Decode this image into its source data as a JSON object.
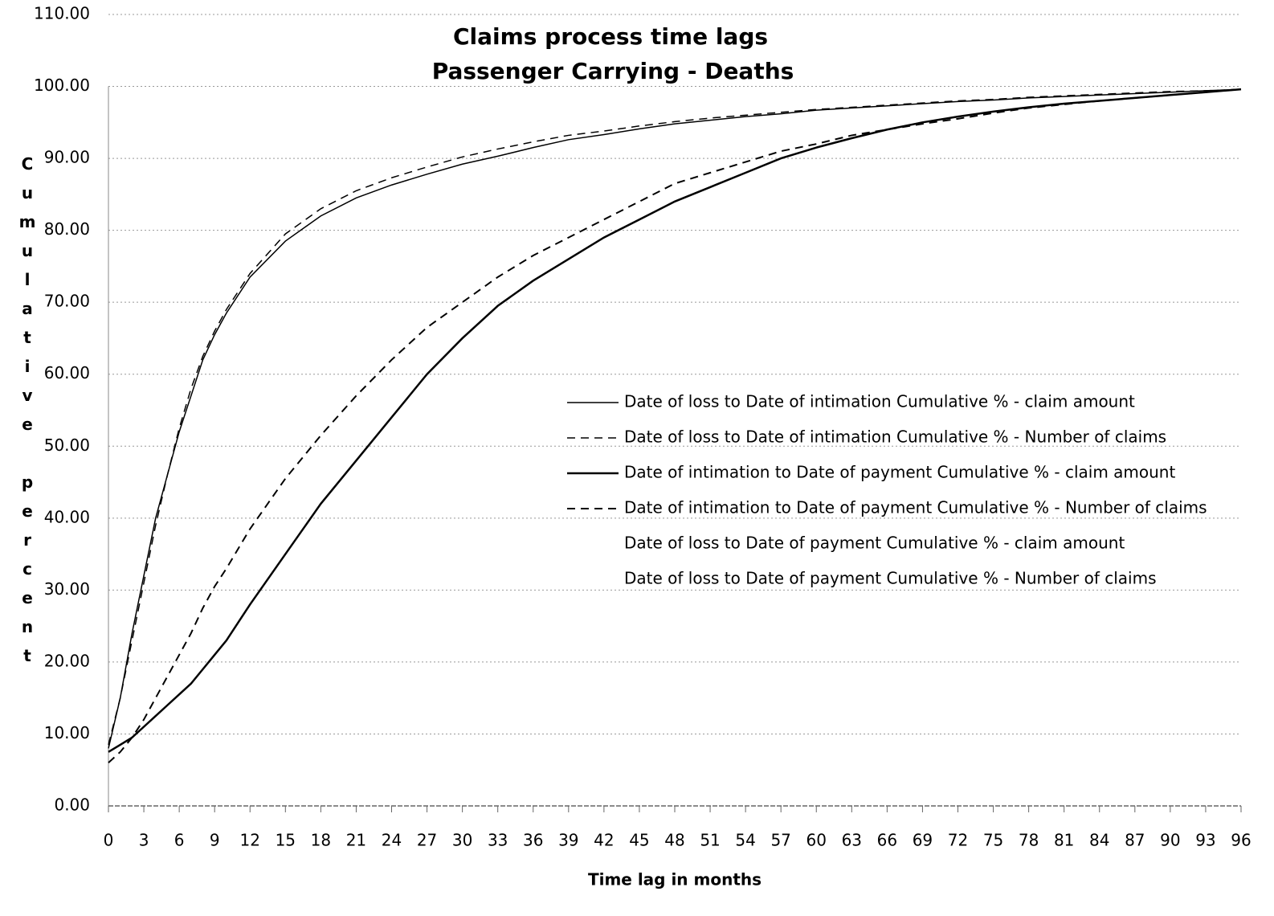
{
  "chart_data": {
    "type": "line",
    "title": "Claims process time lags",
    "subtitle": "Passenger Carrying - Deaths",
    "x_label": "Time lag in months",
    "y_label": "Cumulative percent",
    "x": [
      0,
      1,
      2,
      3,
      4,
      5,
      6,
      7,
      8,
      9,
      10,
      12,
      15,
      18,
      21,
      24,
      27,
      30,
      33,
      36,
      39,
      42,
      45,
      48,
      51,
      54,
      57,
      60,
      63,
      66,
      69,
      72,
      75,
      78,
      81,
      84,
      87,
      90,
      93,
      96
    ],
    "series": [
      {
        "name": "Date of loss to Date of intimation Cumulative % - claim amount",
        "color": "#000000",
        "width": 1.5,
        "dash": "solid",
        "values": [
          8,
          15,
          24,
          32,
          40,
          46,
          52,
          57,
          62,
          65.5,
          68.5,
          73.5,
          78.5,
          82,
          84.5,
          86.3,
          87.8,
          89.2,
          90.3,
          91.5,
          92.6,
          93.3,
          94.1,
          94.8,
          95.3,
          95.8,
          96.2,
          96.7,
          97,
          97.3,
          97.6,
          97.9,
          98.1,
          98.4,
          98.6,
          98.8,
          99,
          99.2,
          99.4,
          99.6
        ]
      },
      {
        "name": "Date of loss to Date of intimation Cumulative % - Number of claims",
        "color": "#000000",
        "width": 1.5,
        "dash": "dashed",
        "values": [
          8.5,
          15,
          23,
          31,
          39,
          46,
          52.5,
          58,
          62.5,
          66,
          69,
          74,
          79.5,
          83,
          85.5,
          87.3,
          88.8,
          90.2,
          91.3,
          92.3,
          93.2,
          93.8,
          94.5,
          95.1,
          95.6,
          96,
          96.4,
          96.8,
          97.1,
          97.4,
          97.7,
          98,
          98.2,
          98.5,
          98.7,
          98.9,
          99.1,
          99.3,
          99.4,
          99.6
        ]
      },
      {
        "name": "Date of intimation to Date of payment Cumulative % - claim amount",
        "color": "#000000",
        "width": 2.5,
        "dash": "solid",
        "values": [
          7.5,
          8.5,
          9.5,
          11,
          12.5,
          14,
          15.5,
          17,
          19,
          21,
          23,
          28,
          35,
          42,
          48,
          54,
          60,
          65,
          69.5,
          73,
          76,
          79,
          81.5,
          84,
          86,
          88,
          90,
          91.5,
          92.8,
          94,
          95,
          95.8,
          96.5,
          97.1,
          97.6,
          98,
          98.4,
          98.8,
          99.2,
          99.6
        ]
      },
      {
        "name": "Date of intimation to Date of payment Cumulative % - Number of claims",
        "color": "#000000",
        "width": 2,
        "dash": "dashed",
        "values": [
          6,
          7.5,
          9.5,
          12,
          15,
          18,
          21,
          24,
          27.5,
          30.5,
          33,
          38.5,
          45.5,
          51.5,
          57,
          62,
          66.5,
          70,
          73.5,
          76.5,
          79,
          81.5,
          84,
          86.5,
          88,
          89.5,
          91,
          92,
          93.2,
          94,
          94.8,
          95.5,
          96.3,
          97,
          97.5,
          98,
          98.4,
          98.8,
          99.2,
          99.6
        ]
      },
      {
        "name": "Date of loss to Date of payment Cumulative % - claim amount"
      },
      {
        "name": "Date of loss to Date of payment Cumulative % - Number of claims"
      }
    ],
    "xlim": [
      0,
      96
    ],
    "xticks": [
      0,
      3,
      6,
      9,
      12,
      15,
      18,
      21,
      24,
      27,
      30,
      33,
      36,
      39,
      42,
      45,
      48,
      51,
      54,
      57,
      60,
      63,
      66,
      69,
      72,
      75,
      78,
      81,
      84,
      87,
      90,
      93,
      96
    ],
    "ylim": [
      0,
      110
    ],
    "yticks": [
      {
        "value": 0,
        "label": "0.00"
      },
      {
        "value": 10,
        "label": "10.00"
      },
      {
        "value": 20,
        "label": "20.00"
      },
      {
        "value": 30,
        "label": "30.00"
      },
      {
        "value": 40,
        "label": "40.00"
      },
      {
        "value": 50,
        "label": "50.00"
      },
      {
        "value": 60,
        "label": "60.00"
      },
      {
        "value": 70,
        "label": "70.00"
      },
      {
        "value": 80,
        "label": "80.00"
      },
      {
        "value": 90,
        "label": "90.00"
      },
      {
        "value": 100,
        "label": "100.00"
      },
      {
        "value": 110,
        "label": "110.00"
      }
    ],
    "grid": true
  }
}
